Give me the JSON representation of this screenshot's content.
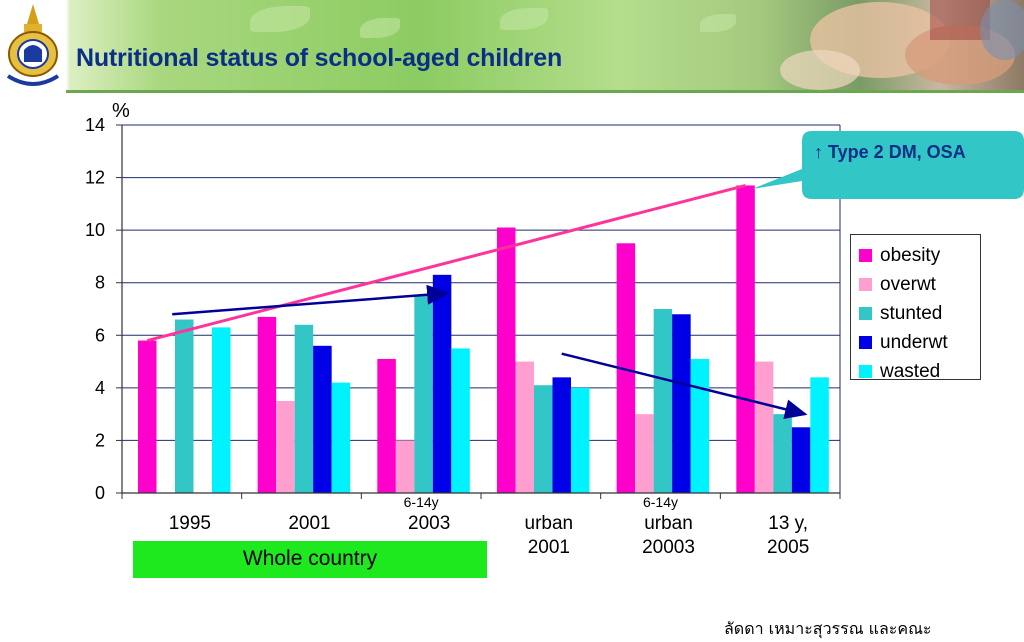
{
  "header": {
    "title": "Nutritional status of school-aged children",
    "logo_icon": "temple-crest-icon",
    "banner_image": "children-hands-photo"
  },
  "callout": {
    "text": "↑ Type 2 DM, OSA"
  },
  "group_box": {
    "label": "Whole country"
  },
  "footer": {
    "credit": "ลัดดา เหมาะสุวรรณ และคณะ"
  },
  "chart_data": {
    "type": "bar",
    "ylabel": "%",
    "ylim": [
      0,
      14
    ],
    "yticks": [
      "0",
      "2",
      "4",
      "6",
      "8",
      "10",
      "12",
      "14"
    ],
    "categories": [
      {
        "lines": [
          "1995"
        ]
      },
      {
        "lines": [
          "2001"
        ]
      },
      {
        "lines": [
          "2003"
        ],
        "note": "6-14y"
      },
      {
        "lines": [
          "urban",
          "2001"
        ]
      },
      {
        "lines": [
          "urban",
          "20003"
        ],
        "note": "6-14y"
      },
      {
        "lines": [
          "13 y,",
          "2005"
        ]
      }
    ],
    "series": [
      {
        "name": "obesity",
        "color": "#ff00cc",
        "values": [
          5.8,
          6.7,
          5.1,
          10.1,
          9.5,
          11.7
        ]
      },
      {
        "name": "overwt",
        "color": "#ff9fcf",
        "values": [
          null,
          3.5,
          2.0,
          5.0,
          3.0,
          5.0
        ]
      },
      {
        "name": "stunted",
        "color": "#33c6c6",
        "values": [
          6.6,
          6.4,
          7.5,
          4.1,
          7.0,
          3.0
        ]
      },
      {
        "name": "underwt",
        "color": "#0000e6",
        "values": [
          null,
          5.6,
          8.3,
          4.4,
          6.8,
          2.5
        ]
      },
      {
        "name": "wasted",
        "color": "#00f2ff",
        "values": [
          6.3,
          4.2,
          5.5,
          4.0,
          5.1,
          4.4
        ]
      }
    ],
    "grid": true,
    "legend_position": "right",
    "annotations": [
      {
        "kind": "trend-line",
        "color": "#ff3399",
        "from": {
          "category": 0,
          "y": 5.8
        },
        "to": {
          "category": 5,
          "y": 11.7
        }
      },
      {
        "kind": "arrow",
        "color": "#000099",
        "from": {
          "category": 0,
          "y": 6.8
        },
        "to": {
          "category": 2,
          "y": 7.6
        }
      },
      {
        "kind": "arrow",
        "color": "#000099",
        "from": {
          "category": 3,
          "y": 5.3
        },
        "to": {
          "category": 5,
          "y": 3.0
        }
      }
    ]
  }
}
